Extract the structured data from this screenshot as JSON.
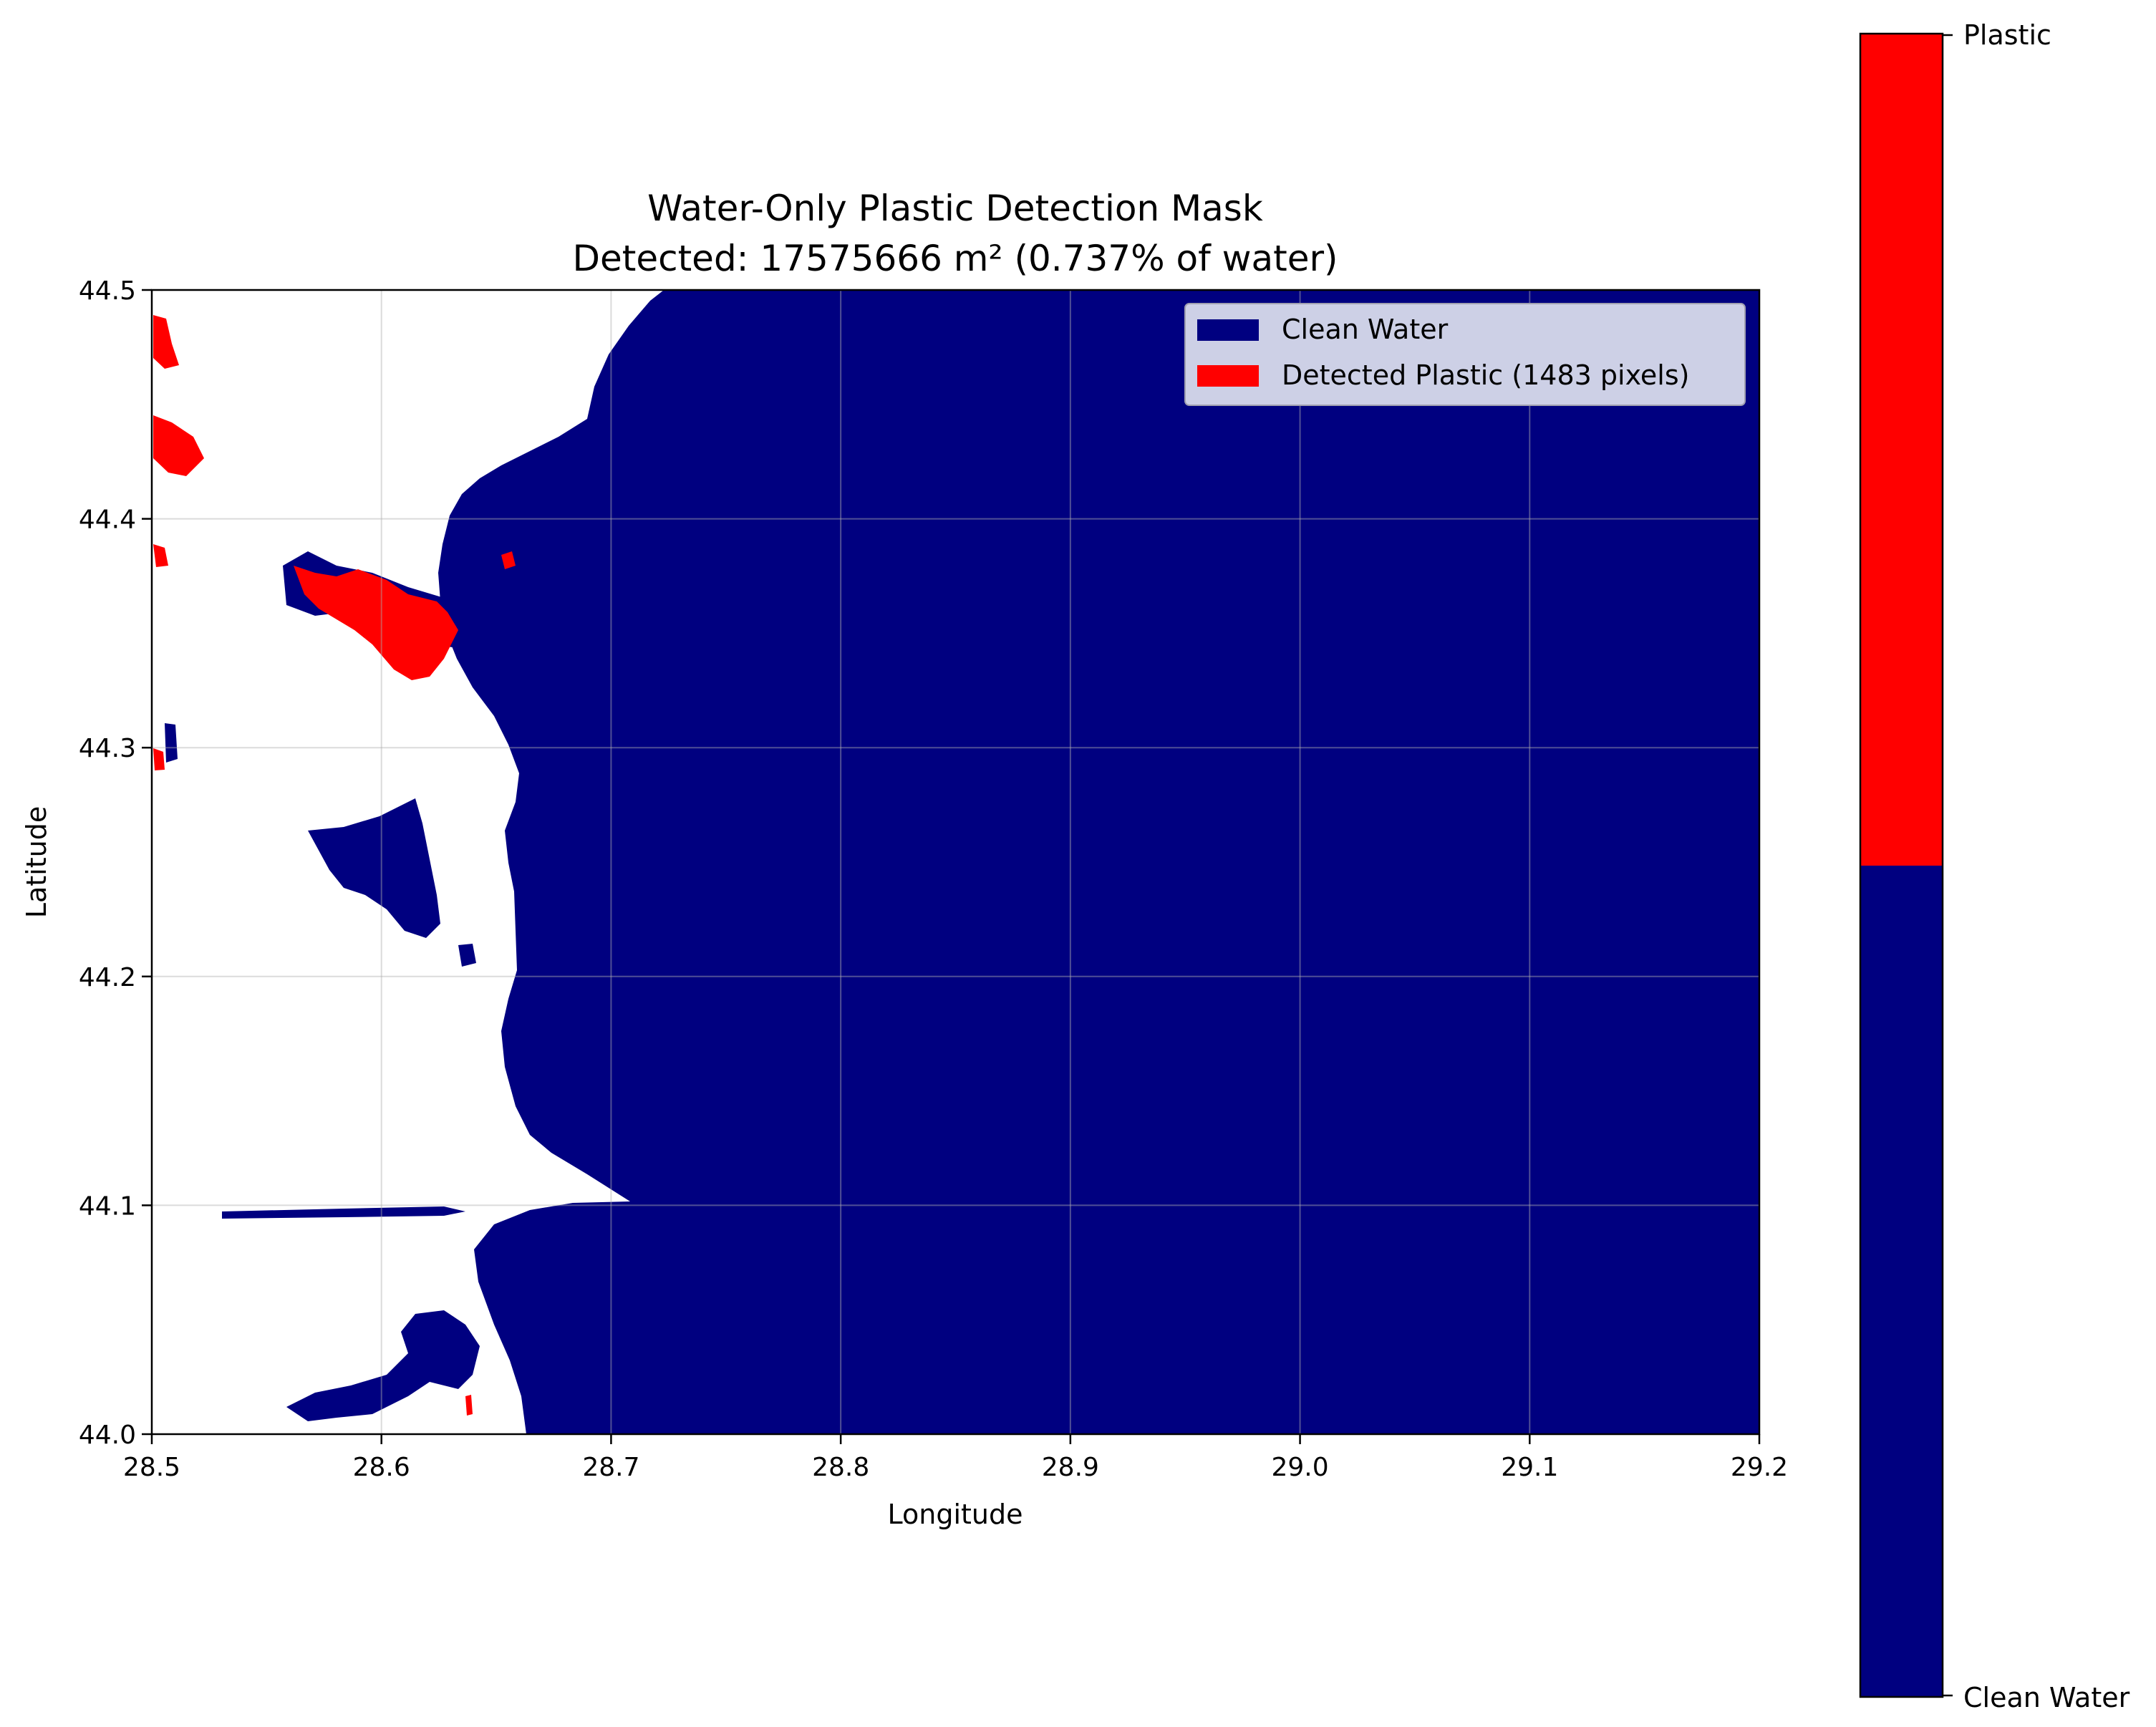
{
  "chart_data": {
    "type": "heatmap",
    "title": "Water-Only Plastic Detection Mask",
    "subtitle": "Detected: 17575666 m² (0.737% of water)",
    "xlabel": "Longitude",
    "ylabel": "Latitude",
    "xlim": [
      28.5,
      29.2
    ],
    "ylim": [
      44.0,
      44.5
    ],
    "x_ticks": [
      "28.5",
      "28.6",
      "28.7",
      "28.8",
      "28.9",
      "29.0",
      "29.1",
      "29.2"
    ],
    "y_ticks": [
      "44.0",
      "44.1",
      "44.2",
      "44.3",
      "44.4",
      "44.5"
    ],
    "grid": true,
    "legend": {
      "placement": "upper-right",
      "entries": [
        {
          "label": "Clean Water",
          "color": "#000080"
        },
        {
          "label": "Detected Plastic (1483 pixels)",
          "color": "#ff0000"
        }
      ]
    },
    "colorbar": {
      "labels": [
        "Plastic",
        "Clean Water"
      ],
      "colors": [
        "#ff0000",
        "#000080"
      ]
    },
    "classes": {
      "land_color": "#ffffff",
      "water_color": "#000080",
      "plastic_color": "#ff0000"
    },
    "detected_plastic_pixels": 1483,
    "detected_area_m2": 17575666,
    "percent_of_water": 0.737
  }
}
